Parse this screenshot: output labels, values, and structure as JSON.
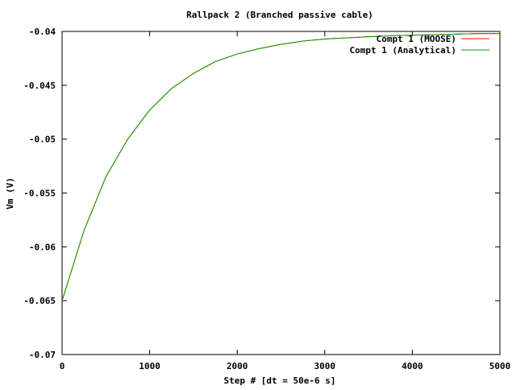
{
  "chart_data": {
    "type": "line",
    "title": "Rallpack 2 (Branched passive cable)",
    "xlabel": "Step # [dt = 50e-6 s]",
    "ylabel": "Vm (V)",
    "xlim": [
      0,
      5000
    ],
    "ylim": [
      -0.07,
      -0.04
    ],
    "xticks": [
      0,
      1000,
      2000,
      3000,
      4000,
      5000
    ],
    "xtick_labels": [
      "0",
      "1000",
      "2000",
      "3000",
      "4000",
      "5000"
    ],
    "yticks": [
      -0.07,
      -0.065,
      -0.06,
      -0.055,
      -0.05,
      -0.045,
      -0.04
    ],
    "ytick_labels": [
      "-0.07",
      "-0.065",
      "-0.06",
      "-0.055",
      "-0.05",
      "-0.045",
      "-0.04"
    ],
    "grid": false,
    "legend_position": "top-right",
    "x": [
      0,
      250,
      500,
      750,
      1000,
      1250,
      1500,
      1750,
      2000,
      2250,
      2500,
      2750,
      3000,
      3250,
      3500,
      3750,
      4000,
      4250,
      4500,
      4750,
      5000
    ],
    "series": [
      {
        "name": "Compt 1 (MOOSE)",
        "color": "#ff0000",
        "values": [
          -0.065,
          -0.0585,
          -0.0535,
          -0.05,
          -0.0473,
          -0.0453,
          -0.0439,
          -0.0428,
          -0.0421,
          -0.0416,
          -0.0412,
          -0.0409,
          -0.0407,
          -0.0406,
          -0.0405,
          -0.0404,
          -0.04035,
          -0.0403,
          -0.04025,
          -0.0402,
          -0.0402
        ]
      },
      {
        "name": "Compt 1 (Analytical)",
        "color": "#00a000",
        "values": [
          -0.065,
          -0.0585,
          -0.0535,
          -0.05,
          -0.0473,
          -0.0453,
          -0.0439,
          -0.0428,
          -0.0421,
          -0.0416,
          -0.0412,
          -0.0409,
          -0.0407,
          -0.0406,
          -0.0405,
          -0.0404,
          -0.04035,
          -0.0403,
          -0.04025,
          -0.0402,
          -0.0402
        ]
      }
    ]
  }
}
